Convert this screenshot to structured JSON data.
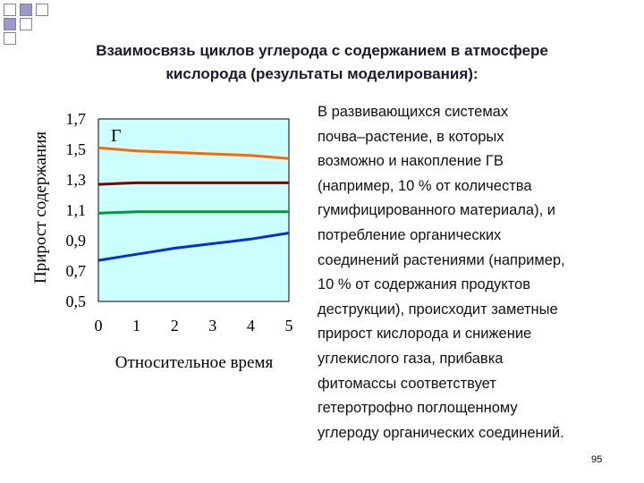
{
  "slide": {
    "title_lines": [
      "Взаимосвязь циклов углерода с содержанием в атмосфере",
      "кислорода (результаты моделирования):"
    ],
    "body_lines": [
      "В развивающихся системах",
      "почва–растение, в которых",
      "возможно и накопление ГВ",
      "(например, 10 % от количества",
      "гумифицированного материала), и",
      "потребление органических",
      "соединений растениями (например,",
      "10 % от содержания продуктов",
      "деструкции), происходит заметные",
      "прирост кислорода и снижение",
      "углекислого газа, прибавка",
      "фитомассы соответствует",
      "гетеротрофно поглощенному",
      "углероду органических соединений."
    ],
    "page_number": "95",
    "colors": {
      "decor_square_fill": "#9999cc",
      "plot_background": "#ccffff",
      "series_orange": "#ff6600",
      "series_darkred": "#800000",
      "series_green": "#009933",
      "series_blue": "#0033cc"
    }
  },
  "chart_data": {
    "type": "line",
    "panel_label": "Г",
    "xlabel": "Относительное время",
    "ylabel": "Прирост содержания",
    "x": [
      0,
      1,
      2,
      3,
      4,
      5
    ],
    "x_tick_labels": [
      "0",
      "1",
      "2",
      "3",
      "4",
      "5"
    ],
    "y_ticks": [
      0.5,
      0.7,
      0.9,
      1.1,
      1.3,
      1.5,
      1.7
    ],
    "y_tick_labels": [
      "0,5",
      "0,7",
      "0,9",
      "1,1",
      "1,3",
      "1,5",
      "1,7"
    ],
    "xlim": [
      0,
      5
    ],
    "ylim": [
      0.5,
      1.7
    ],
    "grid": false,
    "legend": "none",
    "series": [
      {
        "color": "#ff6600",
        "values": [
          1.51,
          1.49,
          1.48,
          1.47,
          1.46,
          1.44
        ]
      },
      {
        "color": "#800000",
        "values": [
          1.27,
          1.28,
          1.28,
          1.28,
          1.28,
          1.28
        ]
      },
      {
        "color": "#009933",
        "values": [
          1.08,
          1.09,
          1.09,
          1.09,
          1.09,
          1.09
        ]
      },
      {
        "color": "#0033cc",
        "values": [
          0.77,
          0.81,
          0.85,
          0.88,
          0.91,
          0.95
        ]
      }
    ]
  }
}
